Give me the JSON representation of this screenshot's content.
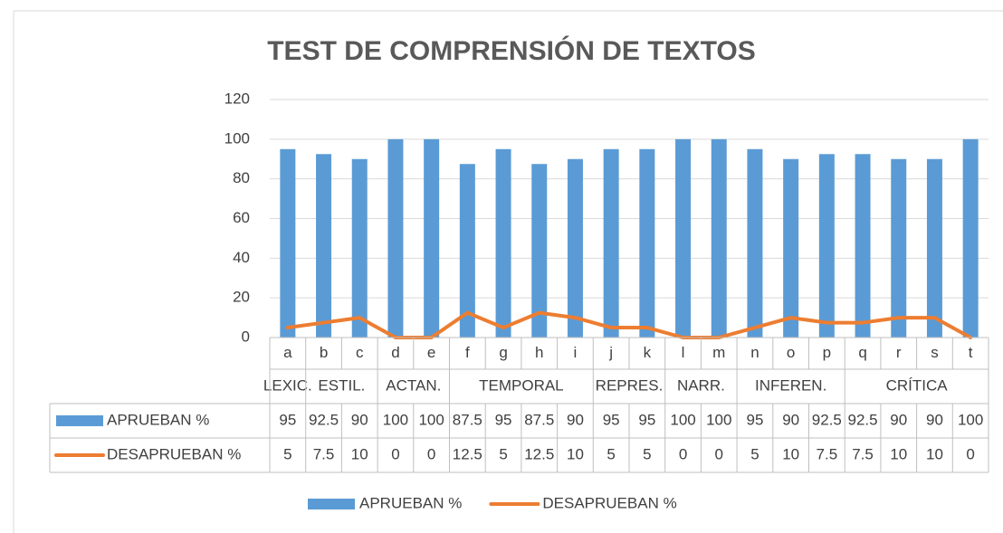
{
  "chart_data": {
    "type": "bar_line",
    "title": "TEST DE COMPRENSIÓN DE TEXTOS",
    "categories": [
      "a",
      "b",
      "c",
      "d",
      "e",
      "f",
      "g",
      "h",
      "i",
      "j",
      "k",
      "l",
      "m",
      "n",
      "o",
      "p",
      "q",
      "r",
      "s",
      "t"
    ],
    "category_groups": [
      "LEXIC.",
      "ESTIL.",
      "ESTIL.",
      "ACTAN.",
      "ACTAN.",
      "TEMPORAL",
      "TEMPORAL",
      "TEMPORAL",
      "TEMPORAL",
      "REPRES.",
      "REPRES.",
      "NARR.",
      "NARR.",
      "INFEREN.",
      "INFEREN.",
      "INFEREN.",
      "CRÍTICA",
      "CRÍTICA",
      "CRÍTICA",
      "CRÍTICA"
    ],
    "series": [
      {
        "name": "APRUEBAN %",
        "type": "bar",
        "color": "#5b9bd5",
        "values": [
          95,
          92.5,
          90,
          100,
          100,
          87.5,
          95,
          87.5,
          90,
          95,
          95,
          100,
          100,
          95,
          90,
          92.5,
          92.5,
          90,
          90,
          100
        ]
      },
      {
        "name": "DESAPRUEBAN %",
        "type": "line",
        "color": "#ed7d31",
        "values": [
          5,
          7.5,
          10,
          0,
          0,
          12.5,
          5,
          12.5,
          10,
          5,
          5,
          0,
          0,
          5,
          10,
          7.5,
          7.5,
          10,
          10,
          0
        ]
      }
    ],
    "ylim": [
      0,
      120
    ],
    "yticks": [
      0,
      20,
      40,
      60,
      80,
      100,
      120
    ],
    "grid": true,
    "legend": "bottom",
    "data_table": true
  }
}
